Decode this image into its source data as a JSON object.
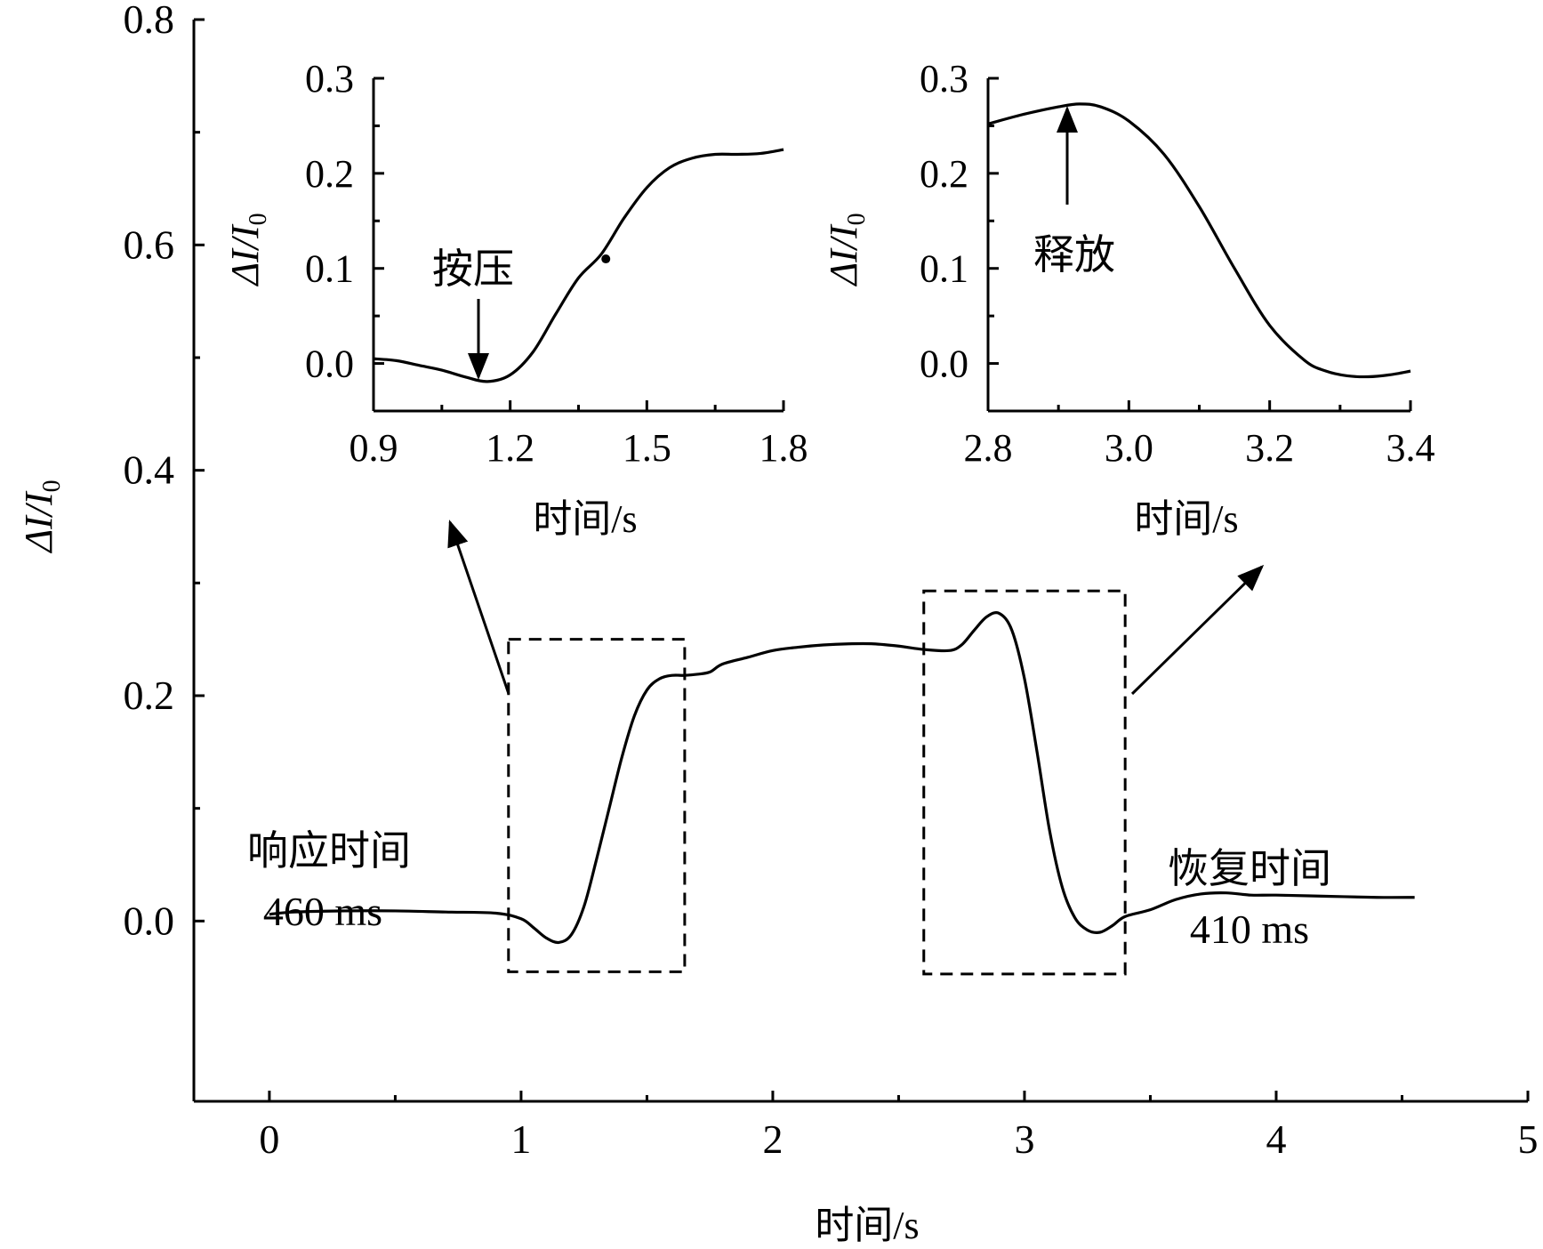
{
  "chart_data": [
    {
      "id": "main",
      "type": "line",
      "xlabel": "时间/s",
      "ylabel_symbol": "ΔI/I",
      "ylabel_subscript": "0",
      "xlim": [
        -0.3,
        5
      ],
      "ylim": [
        -0.16,
        0.8
      ],
      "xticks": [
        0,
        1,
        2,
        3,
        4,
        5
      ],
      "xtick_labels": [
        "0",
        "1",
        "2",
        "3",
        "4",
        "5"
      ],
      "yticks": [
        0.0,
        0.2,
        0.4,
        0.6,
        0.8
      ],
      "ytick_labels": [
        "0.0",
        "0.2",
        "0.4",
        "0.6",
        "0.8"
      ],
      "series": [
        {
          "x": [
            0.0,
            0.1,
            0.3,
            0.5,
            0.7,
            0.9,
            1.0,
            1.05,
            1.1,
            1.15,
            1.2,
            1.25,
            1.3,
            1.35,
            1.4,
            1.45,
            1.5,
            1.55,
            1.6,
            1.65,
            1.7,
            1.75,
            1.8,
            1.9,
            2.0,
            2.1,
            2.2,
            2.3,
            2.4,
            2.5,
            2.6,
            2.7,
            2.75,
            2.8,
            2.85,
            2.9,
            2.95,
            3.0,
            3.05,
            3.1,
            3.15,
            3.2,
            3.25,
            3.3,
            3.35,
            3.4,
            3.5,
            3.6,
            3.7,
            3.8,
            3.9,
            4.0,
            4.2,
            4.4,
            4.55
          ],
          "y": [
            0.006,
            0.008,
            0.009,
            0.009,
            0.008,
            0.007,
            0.002,
            -0.006,
            -0.015,
            -0.019,
            -0.012,
            0.013,
            0.055,
            0.1,
            0.145,
            0.182,
            0.205,
            0.215,
            0.218,
            0.218,
            0.219,
            0.221,
            0.228,
            0.234,
            0.24,
            0.243,
            0.245,
            0.246,
            0.246,
            0.244,
            0.241,
            0.24,
            0.245,
            0.258,
            0.27,
            0.273,
            0.258,
            0.215,
            0.15,
            0.08,
            0.03,
            0.003,
            -0.008,
            -0.01,
            -0.004,
            0.004,
            0.01,
            0.019,
            0.024,
            0.025,
            0.023,
            0.023,
            0.022,
            0.021,
            0.021
          ]
        }
      ],
      "annotations": [
        {
          "text_lines": [
            "响应时间",
            "460 ms"
          ]
        },
        {
          "text_lines": [
            "恢复时间",
            "410 ms"
          ]
        }
      ],
      "highlight_boxes": [
        {
          "x0": 0.95,
          "x1": 1.65,
          "y0": -0.045,
          "y1": 0.25
        },
        {
          "x0": 2.6,
          "x1": 3.4,
          "y0": -0.047,
          "y1": 0.293
        }
      ]
    },
    {
      "id": "inset-left",
      "type": "line",
      "xlabel": "时间/s",
      "ylabel_symbol": "ΔI/I",
      "ylabel_subscript": "0",
      "xlim": [
        0.9,
        1.8
      ],
      "ylim": [
        -0.05,
        0.3
      ],
      "xticks": [
        0.9,
        1.2,
        1.5,
        1.8
      ],
      "xtick_labels": [
        "0.9",
        "1.2",
        "1.5",
        "1.8"
      ],
      "yticks": [
        0.0,
        0.1,
        0.2,
        0.3
      ],
      "ytick_labels": [
        "0.0",
        "0.1",
        "0.2",
        "0.3"
      ],
      "series": [
        {
          "x": [
            0.9,
            0.95,
            1.0,
            1.05,
            1.1,
            1.15,
            1.2,
            1.25,
            1.3,
            1.35,
            1.4,
            1.45,
            1.5,
            1.55,
            1.6,
            1.65,
            1.7,
            1.75,
            1.8
          ],
          "y": [
            0.005,
            0.003,
            -0.002,
            -0.007,
            -0.014,
            -0.019,
            -0.012,
            0.012,
            0.052,
            0.09,
            0.115,
            0.153,
            0.185,
            0.206,
            0.216,
            0.22,
            0.22,
            0.221,
            0.225
          ]
        }
      ],
      "marker_point": {
        "x": 1.41,
        "y": 0.11
      },
      "annotation": {
        "text": "按压",
        "x": 1.13,
        "y": -0.015
      }
    },
    {
      "id": "inset-right",
      "type": "line",
      "xlabel": "时间/s",
      "ylabel_symbol": "ΔI/I",
      "ylabel_subscript": "0",
      "xlim": [
        2.8,
        3.4
      ],
      "ylim": [
        -0.05,
        0.3
      ],
      "xticks": [
        2.8,
        3.0,
        3.2,
        3.4
      ],
      "xtick_labels": [
        "2.8",
        "3.0",
        "3.2",
        "3.4"
      ],
      "yticks": [
        0.0,
        0.1,
        0.2,
        0.3
      ],
      "ytick_labels": [
        "0.0",
        "0.1",
        "0.2",
        "0.3"
      ],
      "series": [
        {
          "x": [
            2.8,
            2.85,
            2.9,
            2.93,
            2.96,
            3.0,
            3.05,
            3.1,
            3.15,
            3.2,
            3.25,
            3.28,
            3.31,
            3.34,
            3.37,
            3.4
          ],
          "y": [
            0.252,
            0.262,
            0.27,
            0.273,
            0.27,
            0.255,
            0.22,
            0.165,
            0.1,
            0.04,
            0.003,
            -0.008,
            -0.013,
            -0.014,
            -0.012,
            -0.008
          ]
        }
      ],
      "annotation": {
        "text": "释放",
        "x": 2.92,
        "y": 0.272
      }
    }
  ]
}
